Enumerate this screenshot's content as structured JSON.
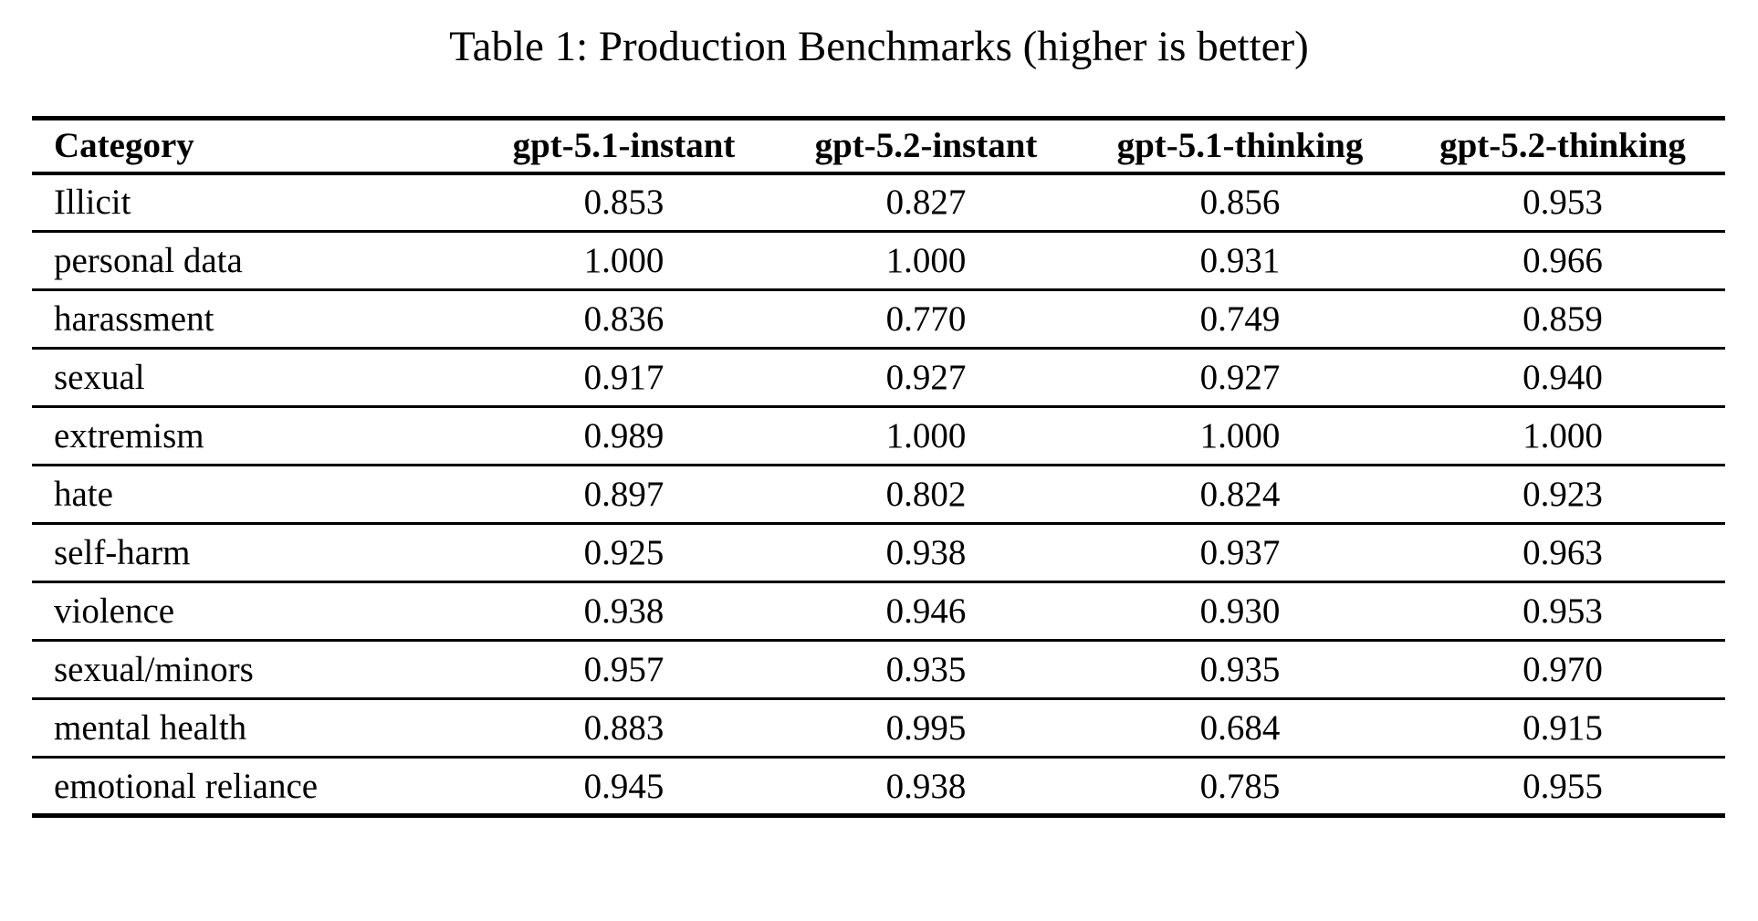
{
  "title": "Table 1: Production Benchmarks (higher is better)",
  "table": {
    "columns": [
      "Category",
      "gpt-5.1-instant",
      "gpt-5.2-instant",
      "gpt-5.1-thinking",
      "gpt-5.2-thinking"
    ],
    "rows": [
      {
        "category": "Illicit",
        "values": [
          "0.853",
          "0.827",
          "0.856",
          "0.953"
        ]
      },
      {
        "category": "personal data",
        "values": [
          "1.000",
          "1.000",
          "0.931",
          "0.966"
        ]
      },
      {
        "category": "harassment",
        "values": [
          "0.836",
          "0.770",
          "0.749",
          "0.859"
        ]
      },
      {
        "category": "sexual",
        "values": [
          "0.917",
          "0.927",
          "0.927",
          "0.940"
        ]
      },
      {
        "category": "extremism",
        "values": [
          "0.989",
          "1.000",
          "1.000",
          "1.000"
        ]
      },
      {
        "category": "hate",
        "values": [
          "0.897",
          "0.802",
          "0.824",
          "0.923"
        ]
      },
      {
        "category": "self-harm",
        "values": [
          "0.925",
          "0.938",
          "0.937",
          "0.963"
        ]
      },
      {
        "category": "violence",
        "values": [
          "0.938",
          "0.946",
          "0.930",
          "0.953"
        ]
      },
      {
        "category": "sexual/minors",
        "values": [
          "0.957",
          "0.935",
          "0.935",
          "0.970"
        ]
      },
      {
        "category": "mental health",
        "values": [
          "0.883",
          "0.995",
          "0.684",
          "0.915"
        ]
      },
      {
        "category": "emotional reliance",
        "values": [
          "0.945",
          "0.938",
          "0.785",
          "0.955"
        ]
      }
    ]
  },
  "colors": {
    "background": "#ffffff",
    "text": "#000000",
    "rule": "#000000"
  }
}
